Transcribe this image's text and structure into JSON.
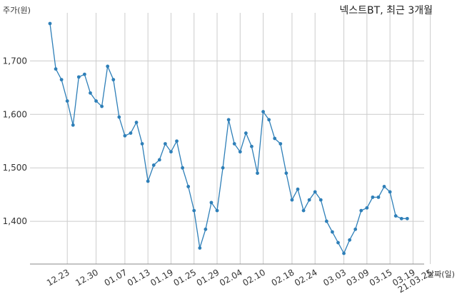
{
  "chart_data": {
    "type": "line",
    "title": "넥스트BT, 최근 3개월",
    "ylabel": "주가(원)",
    "xlabel": "날짜(일)",
    "ylim": [
      1320,
      1790
    ],
    "yticks": [
      1400,
      1500,
      1600,
      1700
    ],
    "ytick_labels": [
      "1,400",
      "1,500",
      "1,600",
      "1,700"
    ],
    "xtick_labels": [
      "12.23",
      "12.30",
      "01.07",
      "01.13",
      "01.19",
      "01.25",
      "01.29",
      "02.04",
      "02.10",
      "02.18",
      "02.24",
      "03.03",
      "03.09",
      "03.15",
      "03.19",
      "21.03.25"
    ],
    "xtick_indices": [
      3,
      8,
      13,
      17,
      21,
      25,
      29,
      33,
      37,
      42,
      46,
      51,
      55,
      59,
      63,
      66
    ],
    "grid": true,
    "series": [
      {
        "color": "#2e7fb8",
        "values": [
          1770,
          1685,
          1665,
          1625,
          1580,
          1670,
          1675,
          1640,
          1625,
          1615,
          1690,
          1665,
          1595,
          1560,
          1565,
          1585,
          1545,
          1475,
          1505,
          1515,
          1545,
          1530,
          1550,
          1500,
          1465,
          1420,
          1350,
          1385,
          1435,
          1420,
          1500,
          1590,
          1545,
          1530,
          1565,
          1540,
          1490,
          1605,
          1590,
          1555,
          1545,
          1490,
          1440,
          1460,
          1420,
          1440,
          1455,
          1440,
          1400,
          1380,
          1360,
          1340,
          1365,
          1385,
          1420,
          1425,
          1445,
          1445,
          1465,
          1455,
          1410,
          1405,
          1405
        ]
      }
    ]
  }
}
